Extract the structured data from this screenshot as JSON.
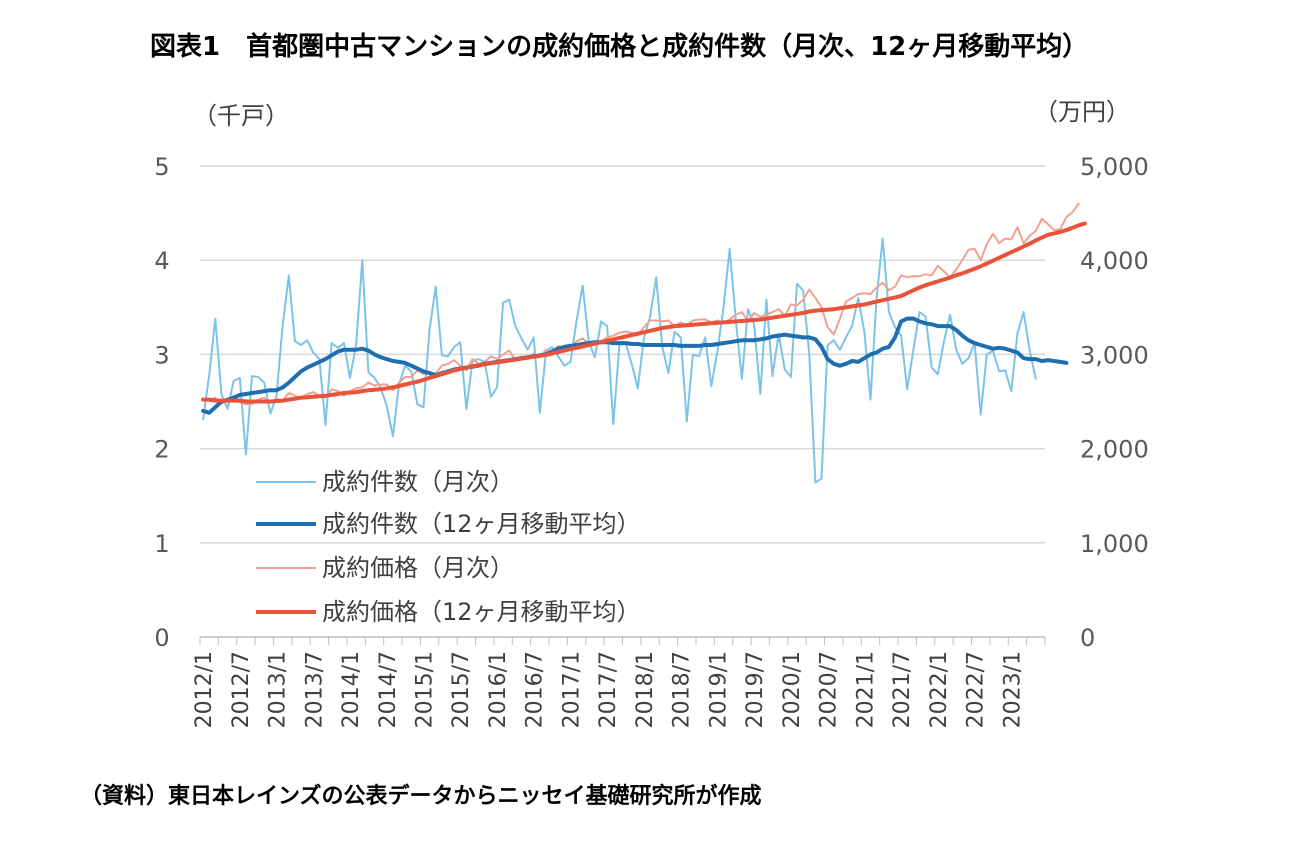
{
  "title": "図表1　首都圏中古マンションの成約価格と成約件数（月次、12ヶ月移動平均）",
  "source": "（資料）東日本レインズの公表データからニッセイ基礎研究所が作成",
  "chart_data": {
    "type": "line",
    "left_unit": "（千戸）",
    "right_unit": "（万円）",
    "left_ticks": [
      "0",
      "1",
      "2",
      "3",
      "4",
      "5"
    ],
    "right_ticks": [
      "0",
      "1,000",
      "2,000",
      "3,000",
      "4,000",
      "5,000"
    ],
    "ylim_left": [
      0,
      5
    ],
    "ylim_right": [
      0,
      5000
    ],
    "x_start": "2012-01",
    "x_end": "2023-06",
    "x_ticks": [
      "2012/1",
      "2012/7",
      "2013/1",
      "2013/7",
      "2014/1",
      "2014/7",
      "2015/1",
      "2015/7",
      "2016/1",
      "2016/7",
      "2017/1",
      "2017/7",
      "2018/1",
      "2018/7",
      "2019/1",
      "2019/7",
      "2020/1",
      "2020/7",
      "2021/1",
      "2021/7",
      "2022/1",
      "2022/7",
      "2023/1"
    ],
    "grid": true,
    "legend_position": "lower-left",
    "series": [
      {
        "name": "成約件数（月次）",
        "axis": "left",
        "color": "#7cc3ea",
        "width": 2,
        "values": [
          2.31,
          2.78,
          3.38,
          2.58,
          2.42,
          2.72,
          2.75,
          1.94,
          2.77,
          2.76,
          2.7,
          2.37,
          2.56,
          3.31,
          3.84,
          3.14,
          3.1,
          3.15,
          3.02,
          2.95,
          2.25,
          3.12,
          3.07,
          3.12,
          2.75,
          3.1,
          4.0,
          2.81,
          2.75,
          2.65,
          2.45,
          2.13,
          2.68,
          2.88,
          2.82,
          2.47,
          2.44,
          3.27,
          3.72,
          2.99,
          2.98,
          3.08,
          3.13,
          2.42,
          2.93,
          2.95,
          2.92,
          2.55,
          2.65,
          3.55,
          3.58,
          3.3,
          3.17,
          3.05,
          3.18,
          2.38,
          3.03,
          3.08,
          2.98,
          2.88,
          2.92,
          3.36,
          3.73,
          3.13,
          2.97,
          3.35,
          3.3,
          2.26,
          3.1,
          3.12,
          2.9,
          2.64,
          3.17,
          3.4,
          3.82,
          3.08,
          2.8,
          3.24,
          3.18,
          2.29,
          3.0,
          2.98,
          3.18,
          2.66,
          3.03,
          3.5,
          4.12,
          3.36,
          2.74,
          3.48,
          3.32,
          2.58,
          3.58,
          2.77,
          3.22,
          2.84,
          2.76,
          3.75,
          3.68,
          3.0,
          1.64,
          1.68,
          3.1,
          3.15,
          3.05,
          3.18,
          3.3,
          3.6,
          3.24,
          2.52,
          3.6,
          4.23,
          3.45,
          3.29,
          3.2,
          2.63,
          3.05,
          3.45,
          3.4,
          2.86,
          2.79,
          3.14,
          3.42,
          3.05,
          2.9,
          2.96,
          3.12,
          2.36,
          3.0,
          3.04,
          2.82,
          2.83,
          2.61,
          3.22,
          3.45,
          3.04,
          2.74
        ],
        "label_color": "#7cc3ea"
      },
      {
        "name": "成約件数（12ヶ月移動平均）",
        "axis": "left",
        "color": "#1f6eb0",
        "width": 4,
        "values": [
          2.4,
          2.38,
          2.44,
          2.5,
          2.52,
          2.54,
          2.57,
          2.58,
          2.59,
          2.6,
          2.61,
          2.62,
          2.62,
          2.65,
          2.7,
          2.76,
          2.82,
          2.86,
          2.89,
          2.92,
          2.95,
          2.99,
          3.03,
          3.05,
          3.05,
          3.05,
          3.06,
          3.04,
          3.0,
          2.97,
          2.95,
          2.93,
          2.92,
          2.91,
          2.88,
          2.85,
          2.82,
          2.8,
          2.78,
          2.8,
          2.82,
          2.84,
          2.85,
          2.86,
          2.87,
          2.88,
          2.9,
          2.91,
          2.92,
          2.93,
          2.94,
          2.95,
          2.96,
          2.97,
          2.98,
          2.99,
          3.0,
          3.03,
          3.06,
          3.08,
          3.09,
          3.1,
          3.11,
          3.12,
          3.13,
          3.13,
          3.13,
          3.12,
          3.12,
          3.12,
          3.11,
          3.11,
          3.1,
          3.1,
          3.1,
          3.1,
          3.1,
          3.1,
          3.09,
          3.09,
          3.09,
          3.09,
          3.1,
          3.1,
          3.11,
          3.12,
          3.13,
          3.14,
          3.15,
          3.15,
          3.15,
          3.16,
          3.17,
          3.19,
          3.2,
          3.21,
          3.2,
          3.19,
          3.18,
          3.18,
          3.16,
          3.08,
          2.95,
          2.9,
          2.88,
          2.9,
          2.93,
          2.92,
          2.96,
          3.0,
          3.02,
          3.06,
          3.08,
          3.18,
          3.35,
          3.38,
          3.38,
          3.35,
          3.33,
          3.32,
          3.3,
          3.3,
          3.3,
          3.26,
          3.2,
          3.15,
          3.12,
          3.1,
          3.08,
          3.06,
          3.07,
          3.06,
          3.04,
          3.02,
          2.96,
          2.95,
          2.95,
          2.93,
          2.94,
          2.93,
          2.92,
          2.91
        ]
      },
      {
        "name": "成約価格（月次）",
        "axis": "right",
        "color": "#f4a08f",
        "width": 2,
        "values": [
          2520,
          2510,
          2540,
          2480,
          2500,
          2560,
          2490,
          2470,
          2470,
          2520,
          2540,
          2490,
          2530,
          2510,
          2590,
          2560,
          2540,
          2580,
          2600,
          2560,
          2540,
          2630,
          2610,
          2560,
          2610,
          2640,
          2650,
          2700,
          2670,
          2680,
          2680,
          2620,
          2700,
          2760,
          2760,
          2830,
          2790,
          2800,
          2800,
          2880,
          2900,
          2940,
          2880,
          2830,
          2950,
          2900,
          2920,
          2980,
          2950,
          3000,
          3040,
          2940,
          2980,
          2950,
          3010,
          2970,
          3050,
          3030,
          3090,
          3050,
          3080,
          3140,
          3170,
          3110,
          3120,
          3140,
          3180,
          3200,
          3230,
          3240,
          3230,
          3200,
          3290,
          3360,
          3360,
          3350,
          3360,
          3300,
          3340,
          3310,
          3360,
          3370,
          3370,
          3340,
          3360,
          3340,
          3370,
          3420,
          3450,
          3350,
          3440,
          3400,
          3420,
          3450,
          3480,
          3410,
          3530,
          3520,
          3580,
          3690,
          3600,
          3500,
          3290,
          3210,
          3380,
          3560,
          3600,
          3640,
          3650,
          3640,
          3710,
          3760,
          3680,
          3720,
          3840,
          3820,
          3830,
          3830,
          3850,
          3840,
          3940,
          3880,
          3820,
          3900,
          4000,
          4110,
          4120,
          4000,
          4170,
          4280,
          4180,
          4230,
          4220,
          4350,
          4180,
          4260,
          4310,
          4440,
          4380,
          4320,
          4330,
          4460,
          4510,
          4600
        ]
      },
      {
        "name": "成約価格（12ヶ月移動平均）",
        "axis": "right",
        "color": "#e8533a",
        "width": 4,
        "values": [
          2520,
          2520,
          2510,
          2510,
          2510,
          2510,
          2510,
          2500,
          2500,
          2500,
          2500,
          2500,
          2505,
          2510,
          2520,
          2530,
          2540,
          2545,
          2550,
          2555,
          2560,
          2570,
          2580,
          2590,
          2595,
          2600,
          2610,
          2620,
          2625,
          2630,
          2640,
          2650,
          2665,
          2680,
          2695,
          2710,
          2730,
          2750,
          2770,
          2790,
          2810,
          2830,
          2845,
          2860,
          2875,
          2885,
          2895,
          2905,
          2915,
          2925,
          2935,
          2945,
          2955,
          2965,
          2975,
          2985,
          2995,
          3010,
          3025,
          3040,
          3055,
          3070,
          3085,
          3100,
          3115,
          3130,
          3145,
          3160,
          3175,
          3190,
          3205,
          3220,
          3235,
          3250,
          3265,
          3280,
          3290,
          3300,
          3305,
          3310,
          3315,
          3320,
          3325,
          3330,
          3335,
          3340,
          3345,
          3350,
          3355,
          3360,
          3365,
          3370,
          3380,
          3390,
          3400,
          3410,
          3420,
          3430,
          3440,
          3455,
          3465,
          3470,
          3475,
          3480,
          3490,
          3500,
          3510,
          3520,
          3530,
          3545,
          3560,
          3575,
          3590,
          3605,
          3620,
          3650,
          3680,
          3710,
          3735,
          3755,
          3775,
          3795,
          3815,
          3840,
          3860,
          3885,
          3910,
          3935,
          3965,
          3995,
          4025,
          4055,
          4085,
          4115,
          4145,
          4175,
          4210,
          4240,
          4270,
          4285,
          4300,
          4320,
          4345,
          4370,
          4390
        ]
      }
    ]
  }
}
